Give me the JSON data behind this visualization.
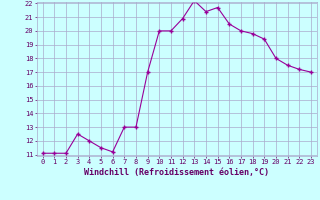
{
  "x": [
    0,
    1,
    2,
    3,
    4,
    5,
    6,
    7,
    8,
    9,
    10,
    11,
    12,
    13,
    14,
    15,
    16,
    17,
    18,
    19,
    20,
    21,
    22,
    23
  ],
  "y": [
    11.1,
    11.1,
    11.1,
    12.5,
    12.0,
    11.5,
    11.2,
    13.0,
    13.0,
    17.0,
    20.0,
    20.0,
    20.9,
    22.2,
    21.4,
    21.7,
    20.5,
    20.0,
    19.8,
    19.4,
    18.0,
    17.5,
    17.2,
    17.0
  ],
  "line_color": "#990099",
  "marker": "D",
  "marker_size": 2,
  "background_color": "#ccffff",
  "grid_color": "#aaaacc",
  "xlabel": "Windchill (Refroidissement éolien,°C)",
  "xlabel_color": "#660066",
  "tick_color": "#660066",
  "ylim": [
    11,
    22
  ],
  "xlim": [
    -0.5,
    23.5
  ],
  "yticks": [
    11,
    12,
    13,
    14,
    15,
    16,
    17,
    18,
    19,
    20,
    21,
    22
  ],
  "xticks": [
    0,
    1,
    2,
    3,
    4,
    5,
    6,
    7,
    8,
    9,
    10,
    11,
    12,
    13,
    14,
    15,
    16,
    17,
    18,
    19,
    20,
    21,
    22,
    23
  ],
  "tick_fontsize": 5.0,
  "xlabel_fontsize": 6.0
}
